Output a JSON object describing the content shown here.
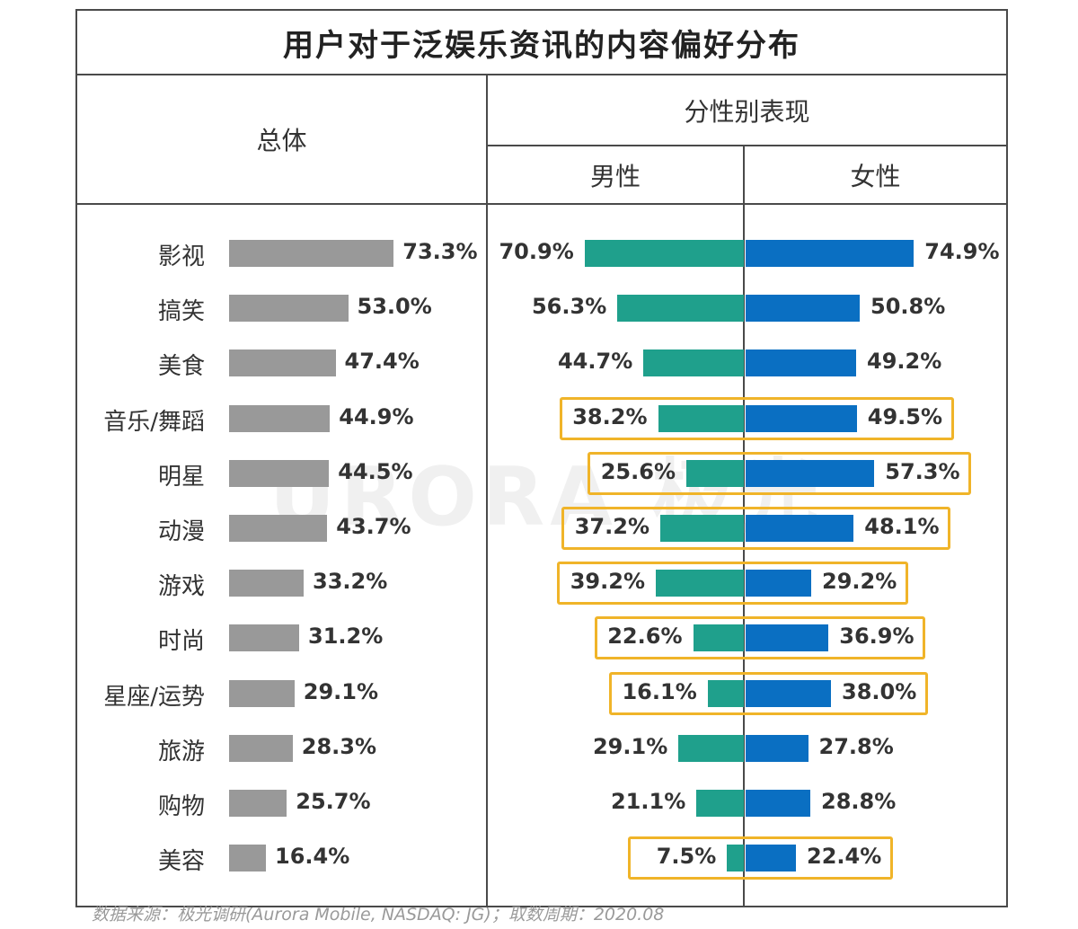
{
  "title": "用户对于泛娱乐资讯的内容偏好分布",
  "header": {
    "overall": "总体",
    "by_gender": "分性别表现",
    "male": "男性",
    "female": "女性"
  },
  "watermark": "URORA 极光",
  "source": "数据来源：极光调研(Aurora Mobile, NASDAQ: JG)；取数周期：2020.08",
  "colors": {
    "overall_bar": "#999999",
    "male_bar": "#1fa08c",
    "female_bar": "#0a6fc2",
    "highlight": "#f0b429"
  },
  "chart_data": [
    {
      "type": "bar",
      "orientation": "horizontal",
      "categories": [
        "影视",
        "搞笑",
        "美食",
        "音乐/舞蹈",
        "明星",
        "动漫",
        "游戏",
        "时尚",
        "星座/运势",
        "旅游",
        "购物",
        "美容"
      ],
      "values": [
        73.3,
        53.0,
        47.4,
        44.9,
        44.5,
        43.7,
        33.2,
        31.2,
        29.1,
        28.3,
        25.7,
        16.4
      ],
      "labels": [
        "73.3%",
        "53.0%",
        "47.4%",
        "44.9%",
        "44.5%",
        "43.7%",
        "33.2%",
        "31.2%",
        "29.1%",
        "28.3%",
        "25.7%",
        "16.4%"
      ],
      "title": "总体",
      "unit": "%"
    },
    {
      "type": "bar",
      "orientation": "horizontal-diverging",
      "categories": [
        "影视",
        "搞笑",
        "美食",
        "音乐/舞蹈",
        "明星",
        "动漫",
        "游戏",
        "时尚",
        "星座/运势",
        "旅游",
        "购物",
        "美容"
      ],
      "title": "分性别表现",
      "unit": "%",
      "series": [
        {
          "name": "男性",
          "values": [
            70.9,
            56.3,
            44.7,
            38.2,
            25.6,
            37.2,
            39.2,
            22.6,
            16.1,
            29.1,
            21.1,
            7.5
          ],
          "labels": [
            "70.9%",
            "56.3%",
            "44.7%",
            "38.2%",
            "25.6%",
            "37.2%",
            "39.2%",
            "22.6%",
            "16.1%",
            "29.1%",
            "21.1%",
            "7.5%"
          ]
        },
        {
          "name": "女性",
          "values": [
            74.9,
            50.8,
            49.2,
            49.5,
            57.3,
            48.1,
            29.2,
            36.9,
            38.0,
            27.8,
            28.8,
            22.4
          ],
          "labels": [
            "74.9%",
            "50.8%",
            "49.2%",
            "49.5%",
            "57.3%",
            "48.1%",
            "29.2%",
            "36.9%",
            "38.0%",
            "27.8%",
            "28.8%",
            "22.4%"
          ]
        }
      ],
      "highlighted_categories": [
        "音乐/舞蹈",
        "明星",
        "动漫",
        "游戏",
        "时尚",
        "星座/运势",
        "美容"
      ]
    }
  ]
}
